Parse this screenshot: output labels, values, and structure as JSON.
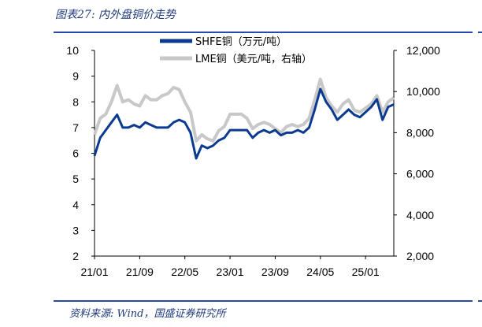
{
  "header": {
    "title": "图表27:  内外盘铜价走势"
  },
  "footer": {
    "source": "资料来源:  Wind，国盛证券研究所"
  },
  "chart_data": {
    "type": "line",
    "x_tick_labels": [
      "21/01",
      "21/09",
      "22/05",
      "23/01",
      "23/09",
      "24/05",
      "25/01"
    ],
    "x_range": [
      "2021-01",
      "2025-06"
    ],
    "y_left": {
      "ticks": [
        "2",
        "3",
        "4",
        "5",
        "6",
        "7",
        "8",
        "9",
        "10"
      ],
      "range": [
        2,
        10
      ]
    },
    "y_right": {
      "ticks": [
        "2,000",
        "4,000",
        "6,000",
        "8,000",
        "10,000",
        "12,000"
      ],
      "range": [
        2000,
        12000
      ]
    },
    "legend_position": "top",
    "grid": false,
    "series": [
      {
        "name": "SHFE铜（万元/吨）",
        "axis": "left",
        "color": "#0b3a91",
        "x": [
          "2021-01",
          "2021-02",
          "2021-03",
          "2021-04",
          "2021-05",
          "2021-06",
          "2021-07",
          "2021-08",
          "2021-09",
          "2021-10",
          "2021-11",
          "2021-12",
          "2022-01",
          "2022-02",
          "2022-03",
          "2022-04",
          "2022-05",
          "2022-06",
          "2022-07",
          "2022-08",
          "2022-09",
          "2022-10",
          "2022-11",
          "2022-12",
          "2023-01",
          "2023-02",
          "2023-03",
          "2023-04",
          "2023-05",
          "2023-06",
          "2023-07",
          "2023-08",
          "2023-09",
          "2023-10",
          "2023-11",
          "2023-12",
          "2024-01",
          "2024-02",
          "2024-03",
          "2024-04",
          "2024-05",
          "2024-06",
          "2024-07",
          "2024-08",
          "2024-09",
          "2024-10",
          "2024-11",
          "2024-12",
          "2025-01",
          "2025-02",
          "2025-03",
          "2025-04",
          "2025-05",
          "2025-06"
        ],
        "values": [
          5.9,
          6.6,
          6.9,
          7.2,
          7.5,
          7.0,
          7.0,
          7.1,
          7.0,
          7.2,
          7.1,
          7.0,
          7.0,
          7.0,
          7.2,
          7.3,
          7.2,
          6.8,
          5.8,
          6.3,
          6.2,
          6.3,
          6.5,
          6.6,
          6.9,
          6.9,
          6.9,
          6.9,
          6.6,
          6.8,
          6.9,
          6.8,
          6.9,
          6.7,
          6.8,
          6.8,
          6.9,
          6.8,
          7.0,
          7.7,
          8.5,
          8.0,
          7.7,
          7.3,
          7.5,
          7.7,
          7.5,
          7.4,
          7.6,
          7.8,
          8.1,
          7.3,
          7.8,
          7.9
        ]
      },
      {
        "name": "LME铜（美元/吨，右轴）",
        "axis": "right",
        "color": "#c8c8c8",
        "x": [
          "2021-01",
          "2021-02",
          "2021-03",
          "2021-04",
          "2021-05",
          "2021-06",
          "2021-07",
          "2021-08",
          "2021-09",
          "2021-10",
          "2021-11",
          "2021-12",
          "2022-01",
          "2022-02",
          "2022-03",
          "2022-04",
          "2022-05",
          "2022-06",
          "2022-07",
          "2022-08",
          "2022-09",
          "2022-10",
          "2022-11",
          "2022-12",
          "2023-01",
          "2023-02",
          "2023-03",
          "2023-04",
          "2023-05",
          "2023-06",
          "2023-07",
          "2023-08",
          "2023-09",
          "2023-10",
          "2023-11",
          "2023-12",
          "2024-01",
          "2024-02",
          "2024-03",
          "2024-04",
          "2024-05",
          "2024-06",
          "2024-07",
          "2024-08",
          "2024-09",
          "2024-10",
          "2024-11",
          "2024-12",
          "2025-01",
          "2025-02",
          "2025-03",
          "2025-04",
          "2025-05",
          "2025-06"
        ],
        "values": [
          7900,
          8700,
          8900,
          9500,
          10300,
          9500,
          9600,
          9400,
          9300,
          9800,
          9600,
          9600,
          9800,
          9900,
          10200,
          10100,
          9500,
          9000,
          7600,
          7900,
          7700,
          7600,
          8100,
          8300,
          8900,
          8900,
          8900,
          8700,
          8200,
          8400,
          8500,
          8400,
          8200,
          8000,
          8300,
          8400,
          8300,
          8400,
          8700,
          9600,
          10600,
          9700,
          9300,
          9000,
          9400,
          9600,
          9100,
          9000,
          9200,
          9400,
          9800,
          9000,
          9500,
          9700
        ]
      }
    ]
  }
}
